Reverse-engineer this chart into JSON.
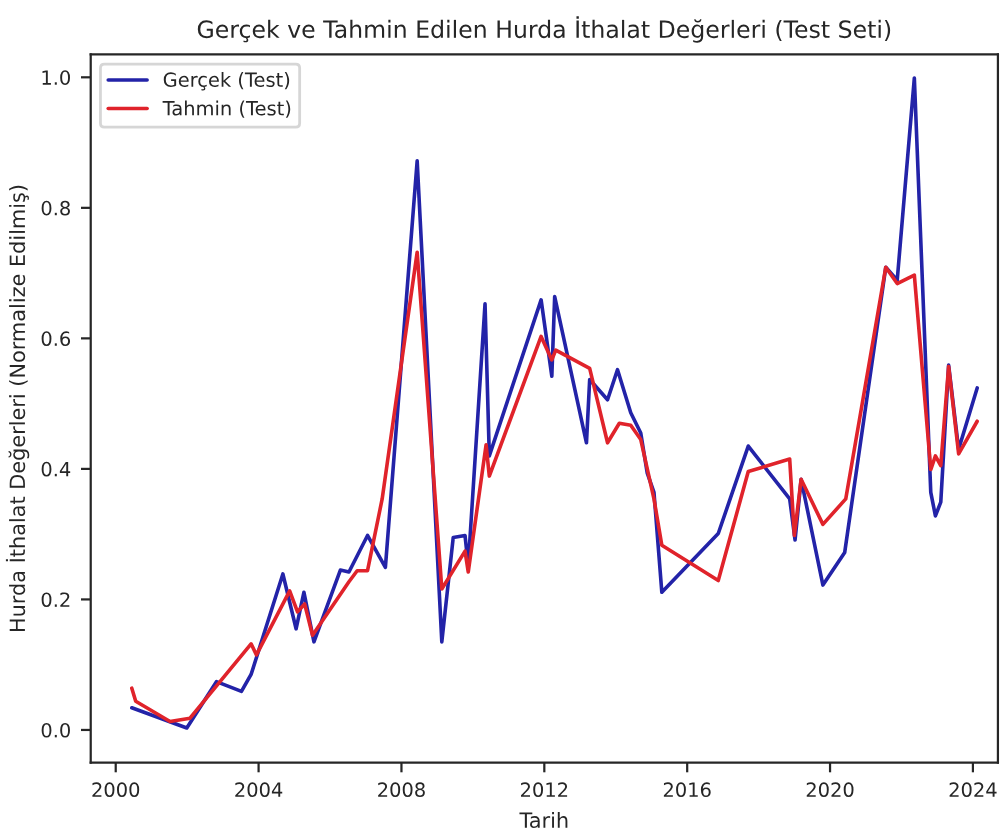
{
  "chart_data": {
    "type": "line",
    "title": "Gerçek ve Tahmin Edilen Hurda İthalat Değerleri (Test Seti)",
    "xlabel": "Tarih",
    "ylabel": "Hurda İthalat Değerleri (Normalize Edilmiş)",
    "xlim": [
      1999.3,
      2024.7
    ],
    "xticks": [
      2000,
      2004,
      2008,
      2012,
      2016,
      2020,
      2024
    ],
    "ylim": [
      -0.05,
      1.035
    ],
    "yticks": [
      {
        "value": 0,
        "label": "0.0"
      },
      {
        "value": 0.2,
        "label": "0.2"
      },
      {
        "value": 0.4,
        "label": "0.4"
      },
      {
        "value": 0.6,
        "label": "0.6"
      },
      {
        "value": 0.8,
        "label": "0.8"
      },
      {
        "value": 1,
        "label": "1.0"
      }
    ],
    "grid": false,
    "legend": "top left",
    "line_style": "solid",
    "marker": "none",
    "series": [
      {
        "name": "Gerçek (Test)",
        "color": "#2323a8",
        "x": [
          2000.45,
          2001.99,
          2002.82,
          2003.52,
          2003.79,
          2004.68,
          2005.05,
          2005.27,
          2005.55,
          2006.29,
          2006.53,
          2007.05,
          2007.55,
          2008.44,
          2009.13,
          2009.45,
          2009.78,
          2009.87,
          2010.34,
          2010.46,
          2011.91,
          2012.21,
          2012.29,
          2013.18,
          2013.27,
          2013.77,
          2014.05,
          2014.42,
          2014.7,
          2014.88,
          2015.07,
          2015.29,
          2016.87,
          2017.71,
          2018.87,
          2019.02,
          2019.19,
          2019.8,
          2020.41,
          2021.56,
          2021.88,
          2022.36,
          2022.82,
          2022.95,
          2023.1,
          2023.32,
          2023.6,
          2024.12
        ],
        "values": [
          0.034,
          0.003,
          0.074,
          0.059,
          0.085,
          0.239,
          0.155,
          0.211,
          0.135,
          0.245,
          0.242,
          0.298,
          0.249,
          0.872,
          0.135,
          0.295,
          0.298,
          0.252,
          0.653,
          0.42,
          0.659,
          0.542,
          0.664,
          0.44,
          0.537,
          0.506,
          0.552,
          0.486,
          0.455,
          0.394,
          0.364,
          0.211,
          0.301,
          0.435,
          0.354,
          0.291,
          0.384,
          0.222,
          0.272,
          0.709,
          0.689,
          0.999,
          0.364,
          0.328,
          0.349,
          0.559,
          0.43,
          0.524
        ]
      },
      {
        "name": "Tahmin (Test)",
        "color": "#e0232b",
        "x": [
          2000.45,
          2000.56,
          2001.52,
          2002.08,
          2002.92,
          2003.79,
          2003.94,
          2004.87,
          2005.09,
          2005.29,
          2005.51,
          2006.53,
          2006.76,
          2007.05,
          2007.46,
          2008.44,
          2009.13,
          2009.78,
          2009.87,
          2010.37,
          2010.46,
          2011.91,
          2012.21,
          2012.32,
          2013.27,
          2013.77,
          2014.1,
          2014.42,
          2014.7,
          2015.07,
          2015.29,
          2016.87,
          2017.71,
          2018.87,
          2019.0,
          2019.19,
          2019.8,
          2020.44,
          2021.56,
          2021.88,
          2022.36,
          2022.82,
          2022.95,
          2023.1,
          2023.32,
          2023.6,
          2024.12
        ],
        "values": [
          0.064,
          0.044,
          0.013,
          0.018,
          0.074,
          0.132,
          0.115,
          0.213,
          0.181,
          0.193,
          0.145,
          0.227,
          0.244,
          0.244,
          0.354,
          0.732,
          0.216,
          0.274,
          0.242,
          0.437,
          0.389,
          0.603,
          0.567,
          0.582,
          0.554,
          0.44,
          0.47,
          0.467,
          0.445,
          0.354,
          0.283,
          0.229,
          0.396,
          0.415,
          0.298,
          0.384,
          0.315,
          0.354,
          0.709,
          0.684,
          0.697,
          0.399,
          0.42,
          0.405,
          0.557,
          0.423,
          0.473
        ]
      }
    ]
  }
}
